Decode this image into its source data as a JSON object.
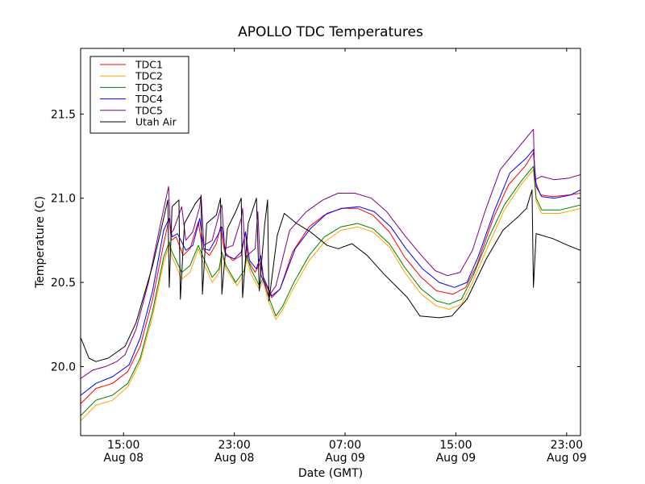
{
  "chart_data": {
    "type": "line",
    "title": "APOLLO TDC Temperatures",
    "xlabel": "Date (GMT)",
    "ylabel": "Temperature (C)",
    "x_units": "hours since Aug 08 00:00 GMT",
    "xlim": [
      11.9,
      48.0
    ],
    "ylim": [
      19.59,
      21.89
    ],
    "grid": false,
    "legend_position": "top-left",
    "x_ticks": [
      {
        "value": 15,
        "line1": "15:00",
        "line2": "Aug 08"
      },
      {
        "value": 23,
        "line1": "23:00",
        "line2": "Aug 08"
      },
      {
        "value": 31,
        "line1": "07:00",
        "line2": "Aug 09"
      },
      {
        "value": 39,
        "line1": "15:00",
        "line2": "Aug 09"
      },
      {
        "value": 47,
        "line1": "23:00",
        "line2": "Aug 09"
      }
    ],
    "y_ticks": [
      {
        "value": 20.0,
        "label": "20.0"
      },
      {
        "value": 20.5,
        "label": "20.5"
      },
      {
        "value": 21.0,
        "label": "21.0"
      },
      {
        "value": 21.5,
        "label": "21.5"
      }
    ],
    "series": [
      {
        "name": "TDC1",
        "color": "#ff0000",
        "points": [
          [
            11.92,
            19.78
          ],
          [
            13.0,
            19.87
          ],
          [
            14.2,
            19.9
          ],
          [
            15.3,
            19.97
          ],
          [
            16.2,
            20.12
          ],
          [
            17.1,
            20.4
          ],
          [
            17.9,
            20.73
          ],
          [
            18.3,
            20.88
          ],
          [
            18.45,
            20.75
          ],
          [
            18.8,
            20.77
          ],
          [
            19.3,
            20.66
          ],
          [
            19.8,
            20.7
          ],
          [
            20.4,
            20.86
          ],
          [
            20.7,
            20.7
          ],
          [
            21.2,
            20.66
          ],
          [
            21.7,
            20.73
          ],
          [
            22.0,
            20.83
          ],
          [
            22.3,
            20.68
          ],
          [
            22.9,
            20.63
          ],
          [
            23.5,
            20.66
          ],
          [
            23.8,
            20.8
          ],
          [
            24.0,
            20.63
          ],
          [
            24.5,
            20.56
          ],
          [
            24.9,
            20.62
          ],
          [
            25.1,
            20.52
          ],
          [
            25.7,
            20.41
          ],
          [
            26.3,
            20.46
          ],
          [
            27.2,
            20.68
          ],
          [
            28.4,
            20.83
          ],
          [
            29.5,
            20.9
          ],
          [
            30.7,
            20.94
          ],
          [
            31.9,
            20.94
          ],
          [
            33.0,
            20.9
          ],
          [
            34.2,
            20.8
          ],
          [
            35.3,
            20.65
          ],
          [
            36.5,
            20.53
          ],
          [
            37.6,
            20.45
          ],
          [
            38.8,
            20.43
          ],
          [
            39.7,
            20.47
          ],
          [
            40.5,
            20.6
          ],
          [
            41.7,
            20.88
          ],
          [
            42.8,
            21.08
          ],
          [
            44.0,
            21.19
          ],
          [
            44.6,
            21.27
          ],
          [
            44.75,
            21.1
          ],
          [
            45.1,
            21.02
          ],
          [
            46.0,
            21.01
          ],
          [
            47.2,
            21.02
          ],
          [
            48.0,
            21.03
          ]
        ]
      },
      {
        "name": "TDC2",
        "color": "#ffa500",
        "points": [
          [
            11.92,
            19.68
          ],
          [
            13.0,
            19.77
          ],
          [
            14.2,
            19.8
          ],
          [
            15.3,
            19.88
          ],
          [
            16.2,
            20.03
          ],
          [
            17.1,
            20.3
          ],
          [
            17.9,
            20.62
          ],
          [
            18.3,
            20.72
          ],
          [
            18.45,
            20.66
          ],
          [
            19.2,
            20.52
          ],
          [
            19.8,
            20.56
          ],
          [
            20.4,
            20.7
          ],
          [
            20.7,
            20.63
          ],
          [
            21.4,
            20.5
          ],
          [
            21.9,
            20.56
          ],
          [
            22.1,
            20.66
          ],
          [
            22.4,
            20.58
          ],
          [
            23.2,
            20.48
          ],
          [
            23.7,
            20.55
          ],
          [
            23.9,
            20.64
          ],
          [
            24.2,
            20.55
          ],
          [
            24.8,
            20.46
          ],
          [
            25.1,
            20.51
          ],
          [
            25.4,
            20.4
          ],
          [
            26.0,
            20.28
          ],
          [
            26.5,
            20.34
          ],
          [
            27.3,
            20.47
          ],
          [
            28.4,
            20.63
          ],
          [
            29.5,
            20.74
          ],
          [
            30.7,
            20.81
          ],
          [
            31.9,
            20.83
          ],
          [
            33.0,
            20.8
          ],
          [
            34.2,
            20.71
          ],
          [
            35.3,
            20.56
          ],
          [
            36.5,
            20.43
          ],
          [
            37.6,
            20.36
          ],
          [
            38.5,
            20.34
          ],
          [
            39.4,
            20.37
          ],
          [
            40.2,
            20.5
          ],
          [
            41.4,
            20.73
          ],
          [
            42.5,
            20.93
          ],
          [
            43.7,
            21.08
          ],
          [
            44.6,
            21.17
          ],
          [
            44.8,
            20.98
          ],
          [
            45.2,
            20.91
          ],
          [
            46.5,
            20.91
          ],
          [
            48.0,
            20.94
          ]
        ]
      },
      {
        "name": "TDC3",
        "color": "#008000",
        "points": [
          [
            11.92,
            19.71
          ],
          [
            13.0,
            19.8
          ],
          [
            14.2,
            19.83
          ],
          [
            15.3,
            19.9
          ],
          [
            16.2,
            20.05
          ],
          [
            17.1,
            20.33
          ],
          [
            17.9,
            20.65
          ],
          [
            18.3,
            20.74
          ],
          [
            18.45,
            20.69
          ],
          [
            19.2,
            20.56
          ],
          [
            19.8,
            20.6
          ],
          [
            20.4,
            20.72
          ],
          [
            20.7,
            20.66
          ],
          [
            21.4,
            20.53
          ],
          [
            21.9,
            20.58
          ],
          [
            22.1,
            20.68
          ],
          [
            22.4,
            20.6
          ],
          [
            23.1,
            20.5
          ],
          [
            23.7,
            20.57
          ],
          [
            23.9,
            20.66
          ],
          [
            24.2,
            20.58
          ],
          [
            24.8,
            20.48
          ],
          [
            25.1,
            20.53
          ],
          [
            25.4,
            20.43
          ],
          [
            26.0,
            20.3
          ],
          [
            26.5,
            20.36
          ],
          [
            27.3,
            20.5
          ],
          [
            28.4,
            20.66
          ],
          [
            29.5,
            20.77
          ],
          [
            30.7,
            20.83
          ],
          [
            31.9,
            20.85
          ],
          [
            33.0,
            20.82
          ],
          [
            34.2,
            20.73
          ],
          [
            35.3,
            20.59
          ],
          [
            36.5,
            20.46
          ],
          [
            37.6,
            20.39
          ],
          [
            38.5,
            20.37
          ],
          [
            39.4,
            20.4
          ],
          [
            40.2,
            20.53
          ],
          [
            41.4,
            20.77
          ],
          [
            42.5,
            20.96
          ],
          [
            43.7,
            21.1
          ],
          [
            44.6,
            21.19
          ],
          [
            44.8,
            21.0
          ],
          [
            45.2,
            20.93
          ],
          [
            46.5,
            20.93
          ],
          [
            48.0,
            20.96
          ]
        ]
      },
      {
        "name": "TDC4",
        "color": "#0000ff",
        "points": [
          [
            11.92,
            19.83
          ],
          [
            13.0,
            19.9
          ],
          [
            14.2,
            19.94
          ],
          [
            15.4,
            20.01
          ],
          [
            16.2,
            20.17
          ],
          [
            17.1,
            20.45
          ],
          [
            17.9,
            20.81
          ],
          [
            18.3,
            20.88
          ],
          [
            18.5,
            20.77
          ],
          [
            18.9,
            20.79
          ],
          [
            19.5,
            20.69
          ],
          [
            20.0,
            20.72
          ],
          [
            20.5,
            20.88
          ],
          [
            20.8,
            20.7
          ],
          [
            21.2,
            20.69
          ],
          [
            21.8,
            20.78
          ],
          [
            22.1,
            20.83
          ],
          [
            22.4,
            20.66
          ],
          [
            23.0,
            20.64
          ],
          [
            23.5,
            20.68
          ],
          [
            23.8,
            20.8
          ],
          [
            24.1,
            20.63
          ],
          [
            24.6,
            20.58
          ],
          [
            24.9,
            20.66
          ],
          [
            25.1,
            20.53
          ],
          [
            25.7,
            20.42
          ],
          [
            26.3,
            20.46
          ],
          [
            27.4,
            20.7
          ],
          [
            28.5,
            20.82
          ],
          [
            29.7,
            20.91
          ],
          [
            30.8,
            20.94
          ],
          [
            32.0,
            20.95
          ],
          [
            33.1,
            20.92
          ],
          [
            34.3,
            20.83
          ],
          [
            35.4,
            20.7
          ],
          [
            36.6,
            20.58
          ],
          [
            37.8,
            20.5
          ],
          [
            38.9,
            20.47
          ],
          [
            39.8,
            20.5
          ],
          [
            40.6,
            20.65
          ],
          [
            41.8,
            20.93
          ],
          [
            42.9,
            21.15
          ],
          [
            44.1,
            21.24
          ],
          [
            44.6,
            21.29
          ],
          [
            44.8,
            21.07
          ],
          [
            45.2,
            21.01
          ],
          [
            46.1,
            21.0
          ],
          [
            47.3,
            21.02
          ],
          [
            48.0,
            21.05
          ]
        ]
      },
      {
        "name": "TDC5",
        "color": "#800080",
        "points": [
          [
            11.92,
            19.93
          ],
          [
            12.8,
            19.98
          ],
          [
            13.7,
            20.0
          ],
          [
            14.5,
            20.03
          ],
          [
            15.1,
            20.07
          ],
          [
            15.9,
            20.22
          ],
          [
            16.8,
            20.5
          ],
          [
            17.7,
            20.86
          ],
          [
            18.25,
            21.07
          ],
          [
            18.4,
            20.79
          ],
          [
            18.6,
            20.81
          ],
          [
            19.2,
            20.95
          ],
          [
            19.5,
            20.75
          ],
          [
            20.0,
            20.8
          ],
          [
            20.5,
            20.95
          ],
          [
            20.6,
            21.02
          ],
          [
            20.8,
            20.72
          ],
          [
            21.4,
            20.75
          ],
          [
            22.0,
            20.94
          ],
          [
            22.1,
            20.96
          ],
          [
            22.3,
            20.7
          ],
          [
            22.9,
            20.72
          ],
          [
            23.5,
            20.88
          ],
          [
            23.6,
            20.94
          ],
          [
            23.8,
            20.65
          ],
          [
            24.5,
            20.7
          ],
          [
            24.7,
            20.92
          ],
          [
            24.9,
            20.55
          ],
          [
            25.5,
            20.42
          ],
          [
            26.0,
            20.48
          ],
          [
            27.0,
            20.81
          ],
          [
            28.2,
            20.92
          ],
          [
            29.4,
            20.99
          ],
          [
            30.5,
            21.03
          ],
          [
            31.7,
            21.03
          ],
          [
            32.9,
            21.0
          ],
          [
            34.0,
            20.92
          ],
          [
            35.2,
            20.79
          ],
          [
            36.4,
            20.67
          ],
          [
            37.5,
            20.57
          ],
          [
            38.4,
            20.54
          ],
          [
            39.3,
            20.56
          ],
          [
            40.2,
            20.69
          ],
          [
            41.1,
            20.92
          ],
          [
            42.2,
            21.17
          ],
          [
            43.4,
            21.29
          ],
          [
            44.6,
            21.41
          ],
          [
            44.7,
            21.11
          ],
          [
            45.2,
            21.13
          ],
          [
            46.1,
            21.11
          ],
          [
            47.2,
            21.12
          ],
          [
            48.0,
            21.14
          ]
        ]
      },
      {
        "name": "Utah Air",
        "color": "#000000",
        "points": [
          [
            11.92,
            20.17
          ],
          [
            12.5,
            20.05
          ],
          [
            13.0,
            20.03
          ],
          [
            13.9,
            20.05
          ],
          [
            15.1,
            20.12
          ],
          [
            15.9,
            20.26
          ],
          [
            17.1,
            20.6
          ],
          [
            17.7,
            20.81
          ],
          [
            18.2,
            20.99
          ],
          [
            18.3,
            20.47
          ],
          [
            18.5,
            20.95
          ],
          [
            19.0,
            20.99
          ],
          [
            19.1,
            20.4
          ],
          [
            19.4,
            20.85
          ],
          [
            20.2,
            20.97
          ],
          [
            20.6,
            21.01
          ],
          [
            20.7,
            20.43
          ],
          [
            21.0,
            20.85
          ],
          [
            21.7,
            20.9
          ],
          [
            22.0,
            21.0
          ],
          [
            22.1,
            20.43
          ],
          [
            22.5,
            20.82
          ],
          [
            23.1,
            20.92
          ],
          [
            23.5,
            21.0
          ],
          [
            23.6,
            20.41
          ],
          [
            24.0,
            20.85
          ],
          [
            24.6,
            21.0
          ],
          [
            24.8,
            20.45
          ],
          [
            25.2,
            20.85
          ],
          [
            25.4,
            20.99
          ],
          [
            25.5,
            20.39
          ],
          [
            26.1,
            20.78
          ],
          [
            26.6,
            20.91
          ],
          [
            27.5,
            20.85
          ],
          [
            28.5,
            20.8
          ],
          [
            29.7,
            20.72
          ],
          [
            30.5,
            20.7
          ],
          [
            31.5,
            20.73
          ],
          [
            32.6,
            20.66
          ],
          [
            33.8,
            20.55
          ],
          [
            35.5,
            20.41
          ],
          [
            36.4,
            20.3
          ],
          [
            37.8,
            20.29
          ],
          [
            38.7,
            20.3
          ],
          [
            39.8,
            20.4
          ],
          [
            41.2,
            20.64
          ],
          [
            42.4,
            20.81
          ],
          [
            43.5,
            20.89
          ],
          [
            44.1,
            20.94
          ],
          [
            44.5,
            21.05
          ],
          [
            44.6,
            20.47
          ],
          [
            44.8,
            20.79
          ],
          [
            46.0,
            20.76
          ],
          [
            47.1,
            20.72
          ],
          [
            48.0,
            20.69
          ]
        ]
      }
    ]
  }
}
